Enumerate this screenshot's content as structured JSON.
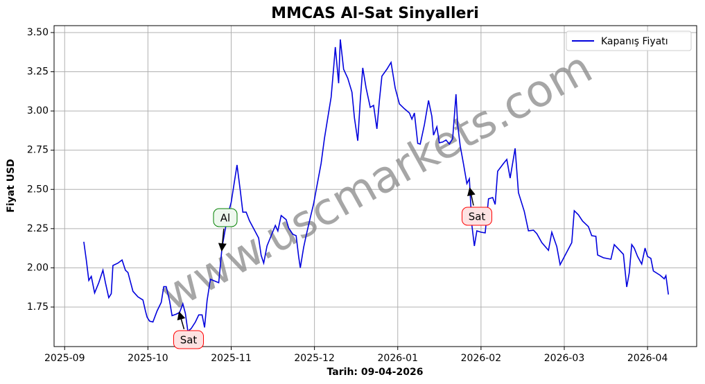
{
  "chart_data": {
    "type": "line",
    "title": "MMCAS Al-Sat Sinyalleri",
    "xlabel": "Tarih: 09-04-2026",
    "ylabel": "Fiyat USD",
    "watermark": "www.uscmarkets.com",
    "legend": "upper right",
    "grid": true,
    "x": [
      0.23,
      0.26,
      0.29,
      0.32,
      0.36,
      0.41,
      0.46,
      0.49,
      0.53,
      0.56,
      0.58,
      0.64,
      0.69,
      0.73,
      0.76,
      0.82,
      0.88,
      0.94,
      0.97,
      0.99,
      1.02,
      1.06,
      1.11,
      1.16,
      1.19,
      1.22,
      1.26,
      1.29,
      1.34,
      1.38,
      1.42,
      1.45,
      1.48,
      1.52,
      1.57,
      1.61,
      1.65,
      1.68,
      1.71,
      1.75,
      1.81,
      1.85,
      1.89,
      1.96,
      2.0,
      2.07,
      2.11,
      2.14,
      2.18,
      2.22,
      2.27,
      2.33,
      2.36,
      2.39,
      2.43,
      2.48,
      2.53,
      2.56,
      2.6,
      2.66,
      2.69,
      2.74,
      2.78,
      2.81,
      2.83,
      2.87,
      2.9,
      2.95,
      2.99,
      3.03,
      3.08,
      3.12,
      3.16,
      3.2,
      3.23,
      3.25,
      3.29,
      3.31,
      3.35,
      3.4,
      3.45,
      3.48,
      3.52,
      3.55,
      3.58,
      3.62,
      3.67,
      3.71,
      3.75,
      3.78,
      3.81,
      3.87,
      3.92,
      3.97,
      4.02,
      4.08,
      4.14,
      4.17,
      4.2,
      4.24,
      4.27,
      4.32,
      4.37,
      4.41,
      4.43,
      4.47,
      4.5,
      4.54,
      4.58,
      4.62,
      4.66,
      4.7,
      4.72,
      4.75,
      4.79,
      4.83,
      4.86,
      4.89,
      4.92,
      4.95,
      5.0,
      5.05,
      5.09,
      5.14,
      5.17,
      5.2,
      5.27,
      5.31,
      5.35,
      5.41,
      5.45,
      5.52,
      5.57,
      5.63,
      5.67,
      5.73,
      5.81,
      5.85,
      5.91,
      5.95,
      6.02,
      6.09,
      6.12,
      6.17,
      6.22,
      6.29,
      6.33,
      6.38,
      6.4,
      6.47,
      6.56,
      6.6,
      6.71,
      6.75,
      6.78,
      6.81,
      6.84,
      6.88,
      6.93,
      6.97,
      7.0,
      7.04,
      7.07,
      7.15,
      7.2,
      7.22,
      7.25
    ],
    "series": [
      {
        "name": "Kapanış Fiyatı",
        "color": "#0000dd",
        "values": [
          2.166,
          2.05,
          1.92,
          1.945,
          1.84,
          1.905,
          1.985,
          1.905,
          1.81,
          1.835,
          2.015,
          2.03,
          2.05,
          1.985,
          1.97,
          1.85,
          1.815,
          1.795,
          1.725,
          1.685,
          1.66,
          1.655,
          1.725,
          1.78,
          1.88,
          1.88,
          1.79,
          1.695,
          1.705,
          1.715,
          1.77,
          1.71,
          1.595,
          1.613,
          1.655,
          1.7,
          1.7,
          1.62,
          1.79,
          1.927,
          1.914,
          1.905,
          2.13,
          2.338,
          2.417,
          2.656,
          2.49,
          2.355,
          2.355,
          2.3,
          2.25,
          2.19,
          2.08,
          2.03,
          2.14,
          2.205,
          2.27,
          2.235,
          2.333,
          2.307,
          2.254,
          2.214,
          2.205,
          2.072,
          2.0,
          2.13,
          2.205,
          2.32,
          2.408,
          2.523,
          2.665,
          2.824,
          2.956,
          3.089,
          3.275,
          3.407,
          3.177,
          3.456,
          3.266,
          3.208,
          3.12,
          2.956,
          2.81,
          3.067,
          3.275,
          3.147,
          3.023,
          3.036,
          2.886,
          3.067,
          3.222,
          3.266,
          3.31,
          3.146,
          3.045,
          3.014,
          2.987,
          2.948,
          2.987,
          2.793,
          2.789,
          2.912,
          3.067,
          2.965,
          2.846,
          2.899,
          2.797,
          2.802,
          2.815,
          2.789,
          2.824,
          3.107,
          2.912,
          2.78,
          2.66,
          2.537,
          2.568,
          2.272,
          2.139,
          2.236,
          2.227,
          2.223,
          2.44,
          2.448,
          2.404,
          2.616,
          2.665,
          2.691,
          2.572,
          2.762,
          2.479,
          2.36,
          2.236,
          2.24,
          2.218,
          2.161,
          2.112,
          2.227,
          2.135,
          2.02,
          2.09,
          2.161,
          2.364,
          2.338,
          2.298,
          2.263,
          2.205,
          2.201,
          2.082,
          2.064,
          2.055,
          2.148,
          2.086,
          1.878,
          1.967,
          2.148,
          2.126,
          2.073,
          2.024,
          2.126,
          2.073,
          2.06,
          1.98,
          1.953,
          1.93,
          1.95,
          1.83
        ]
      }
    ],
    "annotations": [
      {
        "text": "Al",
        "color": "green"
      },
      {
        "text": "Sat",
        "color": "red"
      },
      {
        "text": "Sat",
        "color": "red"
      }
    ],
    "xlim": [
      -0.127,
      7.59
    ],
    "xticks": [
      {
        "value": 0,
        "label": "2025-09"
      },
      {
        "value": 1,
        "label": "2025-10"
      },
      {
        "value": 2,
        "label": "2025-11"
      },
      {
        "value": 3,
        "label": "2025-12"
      },
      {
        "value": 4,
        "label": "2026-01"
      },
      {
        "value": 5,
        "label": "2026-02"
      },
      {
        "value": 6,
        "label": "2026-03"
      },
      {
        "value": 7,
        "label": "2026-04"
      }
    ],
    "ylim": [
      1.498,
      3.544
    ],
    "yticks": [
      1.75,
      {
        "value": 2,
        "label": "2.00"
      },
      2.25,
      {
        "value": 2.5,
        "label": "2.50"
      },
      2.75,
      {
        "value": 3,
        "label": "3.00"
      },
      3.25,
      {
        "value": 3.5,
        "label": "3.50"
      }
    ]
  }
}
